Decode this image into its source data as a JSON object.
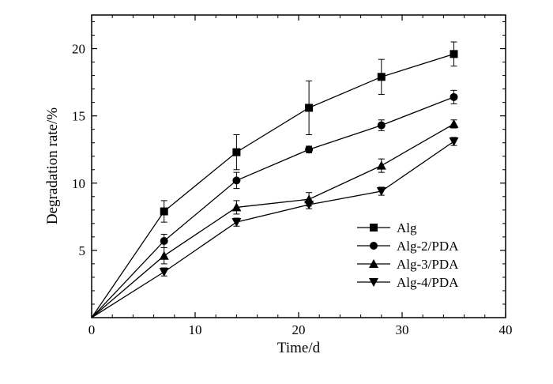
{
  "chart_data": {
    "type": "line",
    "title": "",
    "xlabel": "Time/d",
    "ylabel": "Degradation rate/%",
    "xlim": [
      0,
      40
    ],
    "ylim": [
      0,
      22.5
    ],
    "x_ticks": [
      0,
      10,
      20,
      30,
      40
    ],
    "y_ticks": [
      5,
      10,
      15,
      20
    ],
    "grid": false,
    "legend_position": "lower-right",
    "series": [
      {
        "name": "Alg",
        "marker": "square",
        "x": [
          0,
          7,
          14,
          21,
          28,
          35
        ],
        "y": [
          0,
          7.9,
          12.3,
          15.6,
          17.9,
          19.6
        ],
        "err": [
          0,
          0.8,
          1.3,
          2.0,
          1.3,
          0.9
        ]
      },
      {
        "name": "Alg-2/PDA",
        "marker": "circle",
        "x": [
          0,
          7,
          14,
          21,
          28,
          35
        ],
        "y": [
          0,
          5.7,
          10.2,
          12.5,
          14.3,
          16.4
        ],
        "err": [
          0,
          0.5,
          0.6,
          0.25,
          0.4,
          0.5
        ]
      },
      {
        "name": "Alg-3/PDA",
        "marker": "triangle-up",
        "x": [
          0,
          7,
          14,
          21,
          28,
          35
        ],
        "y": [
          0,
          4.6,
          8.2,
          8.8,
          11.3,
          14.4
        ],
        "err": [
          0,
          0.6,
          0.5,
          0.5,
          0.5,
          0.3
        ]
      },
      {
        "name": "Alg-4/PDA",
        "marker": "triangle-down",
        "x": [
          0,
          7,
          14,
          21,
          28,
          35
        ],
        "y": [
          0,
          3.4,
          7.1,
          8.4,
          9.4,
          13.1
        ],
        "err": [
          0,
          0.3,
          0.3,
          0.3,
          0.3,
          0.3
        ]
      }
    ]
  }
}
